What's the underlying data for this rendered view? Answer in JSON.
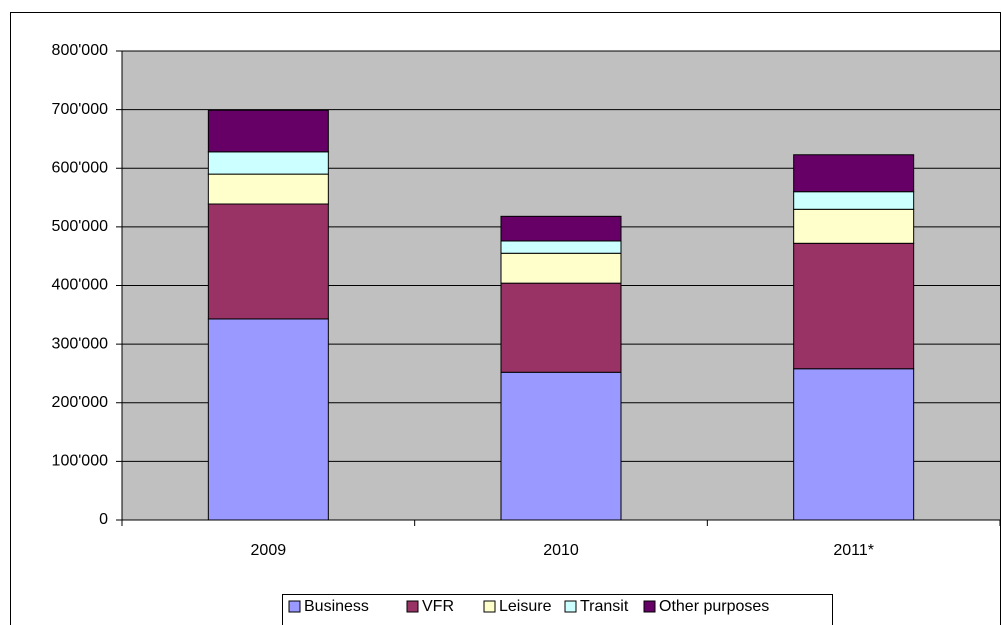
{
  "chart_data": {
    "type": "stacked_bar",
    "categories": [
      "2009",
      "2010",
      "2011*"
    ],
    "series": [
      {
        "name": "Business",
        "color": "#9999ff",
        "values": [
          343000,
          252000,
          258000
        ]
      },
      {
        "name": "VFR",
        "color": "#993366",
        "values": [
          196000,
          152000,
          214000
        ]
      },
      {
        "name": "Leisure",
        "color": "#ffffcc",
        "values": [
          51000,
          51000,
          58000
        ]
      },
      {
        "name": "Transit",
        "color": "#ccffff",
        "values": [
          38000,
          21000,
          30000
        ]
      },
      {
        "name": "Other purposes",
        "color": "#660066",
        "values": [
          71000,
          42000,
          63000
        ]
      }
    ],
    "ylim": [
      0,
      800000
    ],
    "yticks": [
      0,
      {
        "value": 100000,
        "label": "100'000"
      },
      {
        "value": 200000,
        "label": "200'000"
      },
      {
        "value": 300000,
        "label": "300'000"
      },
      {
        "value": 400000,
        "label": "400'000"
      },
      {
        "value": 500000,
        "label": "500'000"
      },
      {
        "value": 600000,
        "label": "600'000"
      },
      {
        "value": 700000,
        "label": "700'000"
      },
      {
        "value": 800000,
        "label": "800'000"
      }
    ],
    "grid": true,
    "legend": "bottom"
  }
}
